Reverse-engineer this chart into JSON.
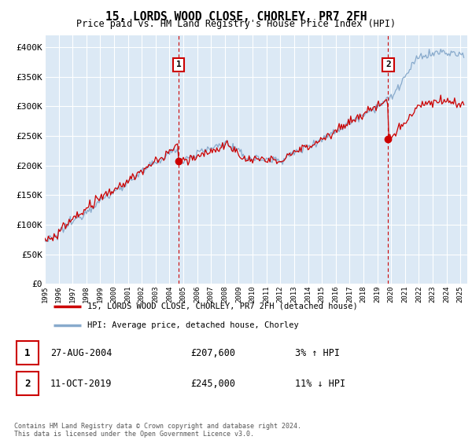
{
  "title": "15, LORDS WOOD CLOSE, CHORLEY, PR7 2FH",
  "subtitle": "Price paid vs. HM Land Registry's House Price Index (HPI)",
  "ylabel_ticks": [
    "£0",
    "£50K",
    "£100K",
    "£150K",
    "£200K",
    "£250K",
    "£300K",
    "£350K",
    "£400K"
  ],
  "ytick_values": [
    0,
    50000,
    100000,
    150000,
    200000,
    250000,
    300000,
    350000,
    400000
  ],
  "ylim": [
    0,
    420000
  ],
  "xlim_start": 1995.0,
  "xlim_end": 2025.5,
  "background_color": "#dce9f5",
  "grid_color": "#ffffff",
  "red_line_color": "#cc0000",
  "blue_line_color": "#88aacc",
  "marker1_x": 2004.65,
  "marker1_y": 207600,
  "marker2_x": 2019.78,
  "marker2_y": 245000,
  "marker1_label": "1",
  "marker2_label": "2",
  "legend_line1": "15, LORDS WOOD CLOSE, CHORLEY, PR7 2FH (detached house)",
  "legend_line2": "HPI: Average price, detached house, Chorley",
  "table_row1_num": "1",
  "table_row1_date": "27-AUG-2004",
  "table_row1_price": "£207,600",
  "table_row1_hpi": "3% ↑ HPI",
  "table_row2_num": "2",
  "table_row2_date": "11-OCT-2019",
  "table_row2_price": "£245,000",
  "table_row2_hpi": "11% ↓ HPI",
  "footer": "Contains HM Land Registry data © Crown copyright and database right 2024.\nThis data is licensed under the Open Government Licence v3.0.",
  "xtick_years": [
    1995,
    1996,
    1997,
    1998,
    1999,
    2000,
    2001,
    2002,
    2003,
    2004,
    2005,
    2006,
    2007,
    2008,
    2009,
    2010,
    2011,
    2012,
    2013,
    2014,
    2015,
    2016,
    2017,
    2018,
    2019,
    2020,
    2021,
    2022,
    2023,
    2024,
    2025
  ]
}
